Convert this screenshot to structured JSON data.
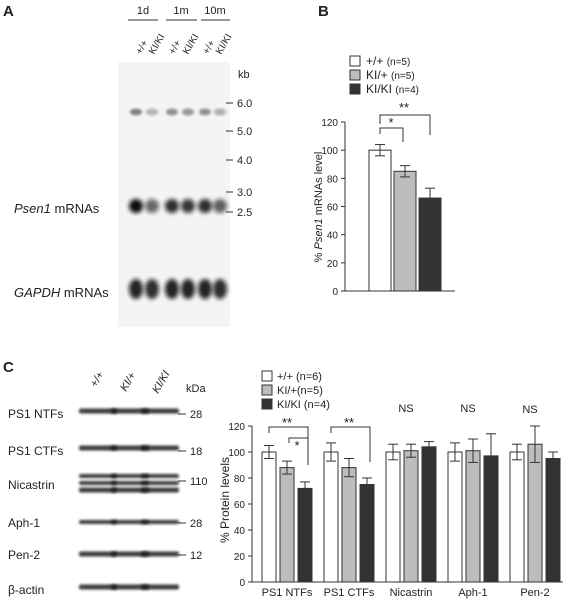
{
  "panels": {
    "a": "A",
    "b": "B",
    "c": "C"
  },
  "panel_a": {
    "ages": [
      "1d",
      "1m",
      "10m"
    ],
    "genotypes": [
      "+/+",
      "KI/KI",
      "+/+",
      "KI/KI",
      "+/+",
      "KI/KI"
    ],
    "kb_label": "kb",
    "markers": [
      "6.0",
      "5.0",
      "4.0",
      "3.0",
      "2.5"
    ],
    "psen1_label_italic": "Psen1",
    "psen1_label_rest": " mRNAs",
    "gapdh_label_italic": "GAPDH",
    "gapdh_label_rest": " mRNAs",
    "psen1_intensity": [
      1.0,
      0.55,
      0.85,
      0.8,
      0.85,
      0.6
    ],
    "gapdh_intensity": [
      1.0,
      0.95,
      1.0,
      1.0,
      1.0,
      0.95
    ]
  },
  "panel_b_legend": [
    {
      "label": "+/+",
      "n": "(n=5)"
    },
    {
      "label": "KI/+",
      "n": "(n=5)"
    },
    {
      "label": "KI/KI",
      "n": "(n=4)"
    }
  ],
  "panel_b_sig": [
    "*",
    "**"
  ],
  "panel_c": {
    "genotypes": [
      "+/+",
      "KI/+",
      "KI/KI"
    ],
    "kda_label": "kDa",
    "rows": [
      {
        "label": "PS1 NTFs",
        "kda": "28"
      },
      {
        "label": "PS1 CTFs",
        "kda": "18"
      },
      {
        "label": "Nicastrin",
        "kda": "110"
      },
      {
        "label": "Aph-1",
        "kda": "28"
      },
      {
        "label": "Pen-2",
        "kda": "12"
      },
      {
        "label": "β-actin",
        "kda": ""
      }
    ],
    "legend": [
      "+/+ (n=6)",
      "KI/+(n=5)",
      "KI/KI (n=4)"
    ],
    "sig_ps1ntf": [
      "**",
      "*"
    ],
    "sig_ps1ctf": "**",
    "ns_label": "NS"
  },
  "colors": {
    "wt": "#ffffff",
    "het": "#bdbdbd",
    "hom": "#333333"
  },
  "chart_data": [
    {
      "type": "bar",
      "categories": [
        "+/+",
        "KI/+",
        "KI/KI"
      ],
      "values": [
        100,
        85,
        66
      ],
      "errors": [
        4,
        4,
        7
      ],
      "ylabel_prefix": "% ",
      "ylabel_italic": "Psen1",
      "ylabel_suffix": " mRNAs level",
      "ylim": [
        0,
        120
      ],
      "yticks": [
        0,
        20,
        40,
        60,
        80,
        100,
        120
      ]
    },
    {
      "type": "bar",
      "categories": [
        "PS1 NTFs",
        "PS1 CTFs",
        "Nicastrin",
        "Aph-1",
        "Pen-2"
      ],
      "series": [
        {
          "name": "+/+ (n=6)",
          "values": [
            100,
            100,
            100,
            100,
            100
          ],
          "errors": [
            5,
            7,
            6,
            7,
            6
          ]
        },
        {
          "name": "KI/+(n=5)",
          "values": [
            88,
            88,
            101,
            101,
            106
          ],
          "errors": [
            5,
            7,
            5,
            9,
            14
          ]
        },
        {
          "name": "KI/KI (n=4)",
          "values": [
            72,
            75,
            104,
            97,
            95
          ],
          "errors": [
            5,
            5,
            4,
            17,
            5
          ]
        }
      ],
      "ylabel": "% Protein levels",
      "ylim": [
        0,
        120
      ],
      "yticks": [
        0,
        20,
        40,
        60,
        80,
        100,
        120
      ]
    }
  ]
}
